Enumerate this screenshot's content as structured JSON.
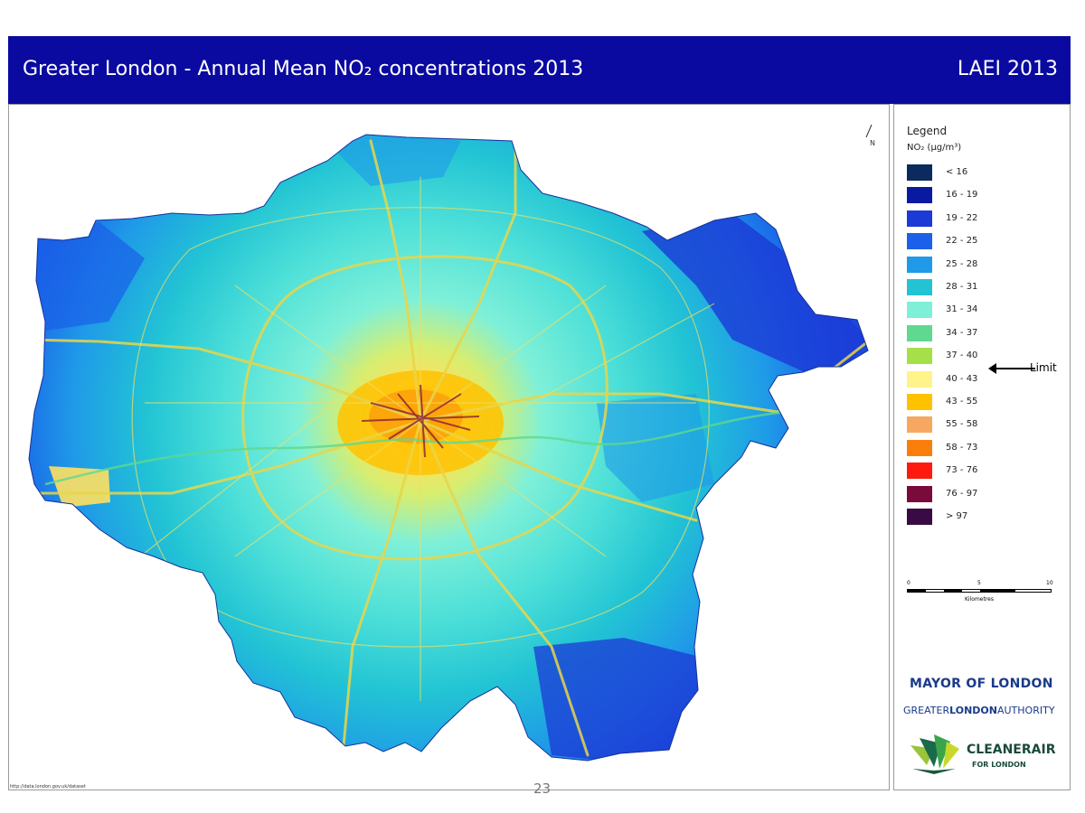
{
  "header": {
    "title": "Greater London - Annual Mean NO₂ concentrations 2013",
    "tag": "LAEI 2013",
    "bg_color": "#0a0aa0"
  },
  "legend": {
    "title": "Legend",
    "unit": "NO₂ (µg/m³)",
    "classes": [
      {
        "label": "< 16",
        "color": "#0b2a5e"
      },
      {
        "label": "16 - 19",
        "color": "#0a1aa0"
      },
      {
        "label": "19 - 22",
        "color": "#1c3ad6"
      },
      {
        "label": "22 - 25",
        "color": "#1a60e8"
      },
      {
        "label": "25 - 28",
        "color": "#1f9ae8"
      },
      {
        "label": "28 - 31",
        "color": "#22c4d4"
      },
      {
        "label": "31 - 34",
        "color": "#7ff0d8"
      },
      {
        "label": "34 - 37",
        "color": "#5fd890"
      },
      {
        "label": "37 - 40",
        "color": "#a6e048"
      },
      {
        "label": "40 - 43",
        "color": "#fff38a"
      },
      {
        "label": "43 - 55",
        "color": "#ffc200"
      },
      {
        "label": "55 - 58",
        "color": "#f6a860"
      },
      {
        "label": "58 - 73",
        "color": "#fa7f0a"
      },
      {
        "label": "73 - 76",
        "color": "#ff1a10"
      },
      {
        "label": "76 - 97",
        "color": "#7a0a3a"
      },
      {
        "label": "> 97",
        "color": "#3a0a44"
      }
    ],
    "limit_label": "Limit",
    "limit_class": "37 - 40"
  },
  "scalebar": {
    "ticks": [
      "0",
      "5",
      "10"
    ],
    "unit": "Kilometres"
  },
  "north_label": "N",
  "logos": {
    "mayor": "MAYOR OF LONDON",
    "gla_prefix": "GREATER",
    "gla_bold": "LONDON",
    "gla_suffix": "AUTHORITY",
    "cleanair": "CLEANERAIR",
    "forlondon": "FOR LONDON"
  },
  "credit": "http://data.london.gov.uk/dataset",
  "page_number": "23"
}
